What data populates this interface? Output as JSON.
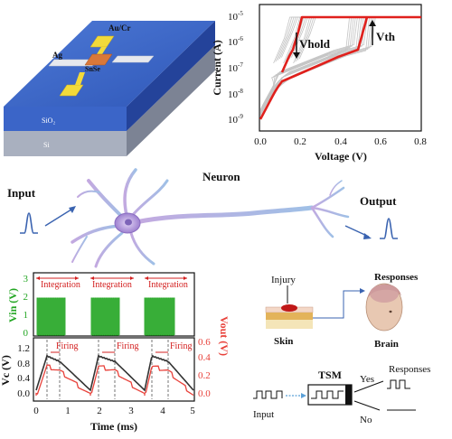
{
  "device": {
    "electrode_label": "Au/Cr",
    "left_contact_label": "Ag",
    "channel_label": "SnSe",
    "oxide_label": "SiO₂",
    "substrate_label": "Si"
  },
  "iv_chart": {
    "ylabel": "Current (A)",
    "xlabel": "Voltage (V)",
    "xticks": [
      "0.0",
      "0.2",
      "0.4",
      "0.6",
      "0.8"
    ],
    "yticks": [
      {
        "base": "10",
        "exp": "-5"
      },
      {
        "base": "10",
        "exp": "-6"
      },
      {
        "base": "10",
        "exp": "-7"
      },
      {
        "base": "10",
        "exp": "-8"
      },
      {
        "base": "10",
        "exp": "-9"
      }
    ],
    "annotations": {
      "vhold": "Vhold",
      "vth": "Vth"
    },
    "colors": {
      "main": "#e0201c",
      "background_sweeps": "#bdbdbd"
    }
  },
  "neuron": {
    "title": "Neuron",
    "input_label": "Input",
    "output_label": "Output"
  },
  "vin_chart": {
    "ylabel": "Vin (V)",
    "yticks": [
      "0",
      "1",
      "2",
      "3"
    ],
    "integration_label": "Integration",
    "color": "#23a623"
  },
  "vc_chart": {
    "ylabel_left": "Vc (V)",
    "ylabel_right": "Vout (V)",
    "xlabel": "Time (ms)",
    "left_ticks": [
      "0.0",
      "0.4",
      "0.8",
      "1.2"
    ],
    "right_ticks": [
      "0.0",
      "0.2",
      "0.4",
      "0.6"
    ],
    "xticks": [
      "0",
      "1",
      "2",
      "3",
      "4",
      "5"
    ],
    "firing_label": "Firing",
    "colors": {
      "vc": "#333333",
      "vout": "#e8413a"
    }
  },
  "sensory": {
    "injury_label": "Injury",
    "skin_label": "Skin",
    "responses_label": "Responses",
    "brain_label": "Brain"
  },
  "tsm_flow": {
    "input_label": "Input",
    "tsm_label": "TSM",
    "yes_label": "Yes",
    "no_label": "No",
    "responses_label": "Responses"
  }
}
